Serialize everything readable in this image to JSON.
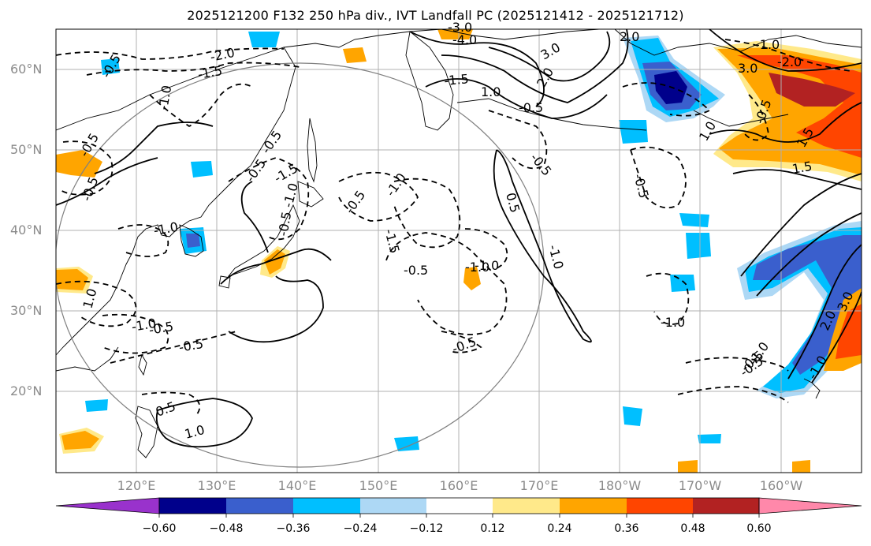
{
  "title": "2025121200 F132 250 hPa div., IVT Landfall PC (2025121412 - 2025121712)",
  "lat_labels": [
    "60°N",
    "50°N",
    "40°N",
    "30°N",
    "20°N"
  ],
  "lon_labels": [
    "120°E",
    "130°E",
    "140°E",
    "150°E",
    "160°E",
    "170°E",
    "180°W",
    "170°W",
    "160°W"
  ],
  "colorbar": {
    "ticks": [
      "−0.60",
      "−0.48",
      "−0.36",
      "−0.24",
      "−0.12",
      "0.12",
      "0.24",
      "0.36",
      "0.48",
      "0.60"
    ],
    "colors": [
      "#9932cc",
      "#00008b",
      "#3a5fcd",
      "#00bfff",
      "#add8f5",
      "#ffffff",
      "#ffe98a",
      "#ffa500",
      "#ff4500",
      "#b22222",
      "#ff88aa"
    ]
  },
  "contour_labels": [
    "-2.0",
    "-1.5",
    "-1.0",
    "-0.5",
    "-0.5",
    "-0.5",
    "-1.0",
    "-1.5",
    "-1.0",
    "-0.5",
    "1.0",
    "-1.0",
    "-0.5",
    "-0.5",
    "1.0",
    "1.5",
    "2.0",
    "3.0",
    "-0.5",
    "-1.0",
    "-0.5",
    "-0.5",
    "-1.0",
    "-0.5",
    "-1.0",
    "0.5",
    "-0.5",
    "0.5",
    "2.0",
    "3.0",
    "-1.0",
    "-2.0",
    "-4.0",
    "-3.0",
    "-1.5",
    "-0.5",
    "1.0",
    "1.5",
    "-0.5",
    "-0.5",
    "1.0",
    "-1.0",
    "-0.5",
    "-0.5",
    "-1.5",
    "-1.0",
    "-1.0",
    "-0.5",
    "2.0",
    "3.0",
    "-1.0"
  ]
}
